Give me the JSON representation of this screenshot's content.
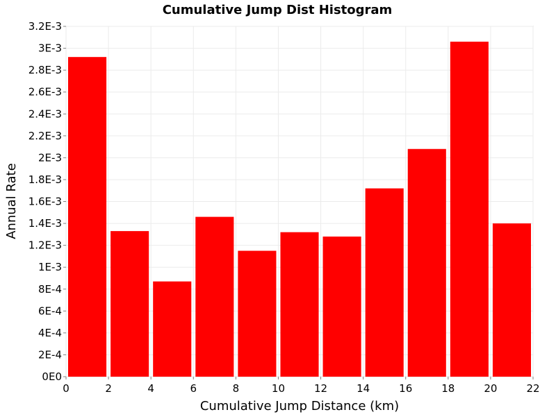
{
  "chart_data": {
    "type": "bar",
    "title": "Cumulative Jump Dist Histogram",
    "xlabel": "Cumulative Jump Distance (km)",
    "ylabel": "Annual Rate",
    "xlim": [
      0,
      22
    ],
    "ylim": [
      0,
      0.0032
    ],
    "grid": true,
    "legend": "none",
    "bar_color": "#ff0000",
    "bin_width": 2,
    "bins": [
      {
        "x_start": 0,
        "x_end": 2,
        "value": 0.00292
      },
      {
        "x_start": 2,
        "x_end": 4,
        "value": 0.00133
      },
      {
        "x_start": 4,
        "x_end": 6,
        "value": 0.00087
      },
      {
        "x_start": 6,
        "x_end": 8,
        "value": 0.00146
      },
      {
        "x_start": 8,
        "x_end": 10,
        "value": 0.00115
      },
      {
        "x_start": 10,
        "x_end": 12,
        "value": 0.00132
      },
      {
        "x_start": 12,
        "x_end": 14,
        "value": 0.00128
      },
      {
        "x_start": 14,
        "x_end": 16,
        "value": 0.00172
      },
      {
        "x_start": 16,
        "x_end": 18,
        "value": 0.00208
      },
      {
        "x_start": 18,
        "x_end": 20,
        "value": 0.00306
      },
      {
        "x_start": 20,
        "x_end": 22,
        "value": 0.0014
      }
    ],
    "x_ticks": [
      {
        "value": 0,
        "label": "0"
      },
      {
        "value": 2,
        "label": "2"
      },
      {
        "value": 4,
        "label": "4"
      },
      {
        "value": 6,
        "label": "6"
      },
      {
        "value": 8,
        "label": "8"
      },
      {
        "value": 10,
        "label": "10"
      },
      {
        "value": 12,
        "label": "12"
      },
      {
        "value": 14,
        "label": "14"
      },
      {
        "value": 16,
        "label": "16"
      },
      {
        "value": 18,
        "label": "18"
      },
      {
        "value": 20,
        "label": "20"
      },
      {
        "value": 22,
        "label": "22"
      }
    ],
    "y_ticks": [
      {
        "value": 0,
        "label": "0E0"
      },
      {
        "value": 0.0002,
        "label": "2E-4"
      },
      {
        "value": 0.0004,
        "label": "4E-4"
      },
      {
        "value": 0.0006,
        "label": "6E-4"
      },
      {
        "value": 0.0008,
        "label": "8E-4"
      },
      {
        "value": 0.001,
        "label": "1E-3"
      },
      {
        "value": 0.0012,
        "label": "1.2E-3"
      },
      {
        "value": 0.0014,
        "label": "1.4E-3"
      },
      {
        "value": 0.0016,
        "label": "1.6E-3"
      },
      {
        "value": 0.0018,
        "label": "1.8E-3"
      },
      {
        "value": 0.002,
        "label": "2E-3"
      },
      {
        "value": 0.0022,
        "label": "2.2E-3"
      },
      {
        "value": 0.0024,
        "label": "2.4E-3"
      },
      {
        "value": 0.0026,
        "label": "2.6E-3"
      },
      {
        "value": 0.0028,
        "label": "2.8E-3"
      },
      {
        "value": 0.003,
        "label": "3E-3"
      },
      {
        "value": 0.0032,
        "label": "3.2E-3"
      }
    ]
  }
}
